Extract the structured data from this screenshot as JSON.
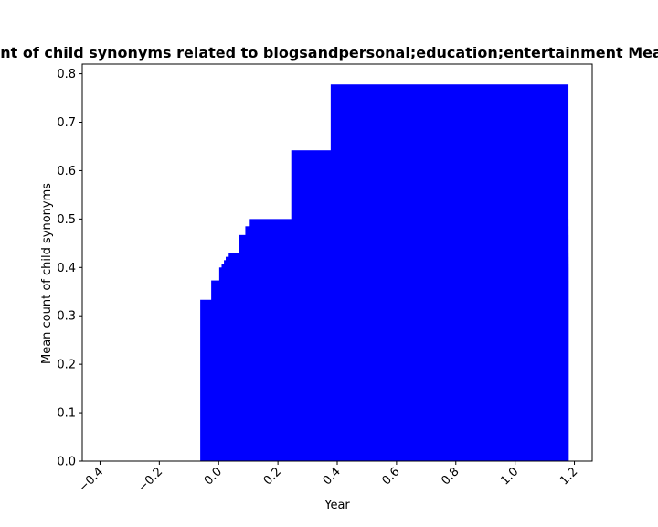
{
  "chart_data": {
    "type": "bar",
    "title": "Distribution of Mean count of child synonyms related to blogsandpersonal;education;entertainment Mean count of child synonyms",
    "xlabel": "Year",
    "ylabel": "Mean count of child synonyms",
    "xlim": [
      -0.46,
      1.26
    ],
    "ylim": [
      0,
      0.82
    ],
    "x_ticks": [
      -0.4,
      -0.2,
      0.0,
      0.2,
      0.4,
      0.6,
      0.8,
      1.0,
      1.2
    ],
    "x_tick_labels": [
      "−0.4",
      "−0.2",
      "0.0",
      "0.2",
      "0.4",
      "0.6",
      "0.8",
      "1.0",
      "1.2"
    ],
    "y_ticks": [
      0.0,
      0.1,
      0.2,
      0.3,
      0.4,
      0.5,
      0.6,
      0.7,
      0.8
    ],
    "y_tick_labels": [
      "0.0",
      "0.1",
      "0.2",
      "0.3",
      "0.4",
      "0.5",
      "0.6",
      "0.7",
      "0.8"
    ],
    "bar_color": "#0000ff",
    "grid": false,
    "bars": [
      {
        "x0": -0.062,
        "x1": 1.18,
        "value": 0.333
      },
      {
        "x0": -0.025,
        "x1": 1.18,
        "value": 0.373
      },
      {
        "x0": 0.002,
        "x1": 1.18,
        "value": 0.4
      },
      {
        "x0": 0.01,
        "x1": 1.18,
        "value": 0.407
      },
      {
        "x0": 0.018,
        "x1": 1.18,
        "value": 0.415
      },
      {
        "x0": 0.024,
        "x1": 1.18,
        "value": 0.422
      },
      {
        "x0": 0.034,
        "x1": 1.18,
        "value": 0.43
      },
      {
        "x0": 0.068,
        "x1": 1.18,
        "value": 0.467
      },
      {
        "x0": 0.09,
        "x1": 1.18,
        "value": 0.485
      },
      {
        "x0": 0.105,
        "x1": 1.18,
        "value": 0.5
      },
      {
        "x0": 0.245,
        "x1": 1.18,
        "value": 0.642
      },
      {
        "x0": 0.378,
        "x1": 1.18,
        "value": 0.778
      }
    ]
  }
}
